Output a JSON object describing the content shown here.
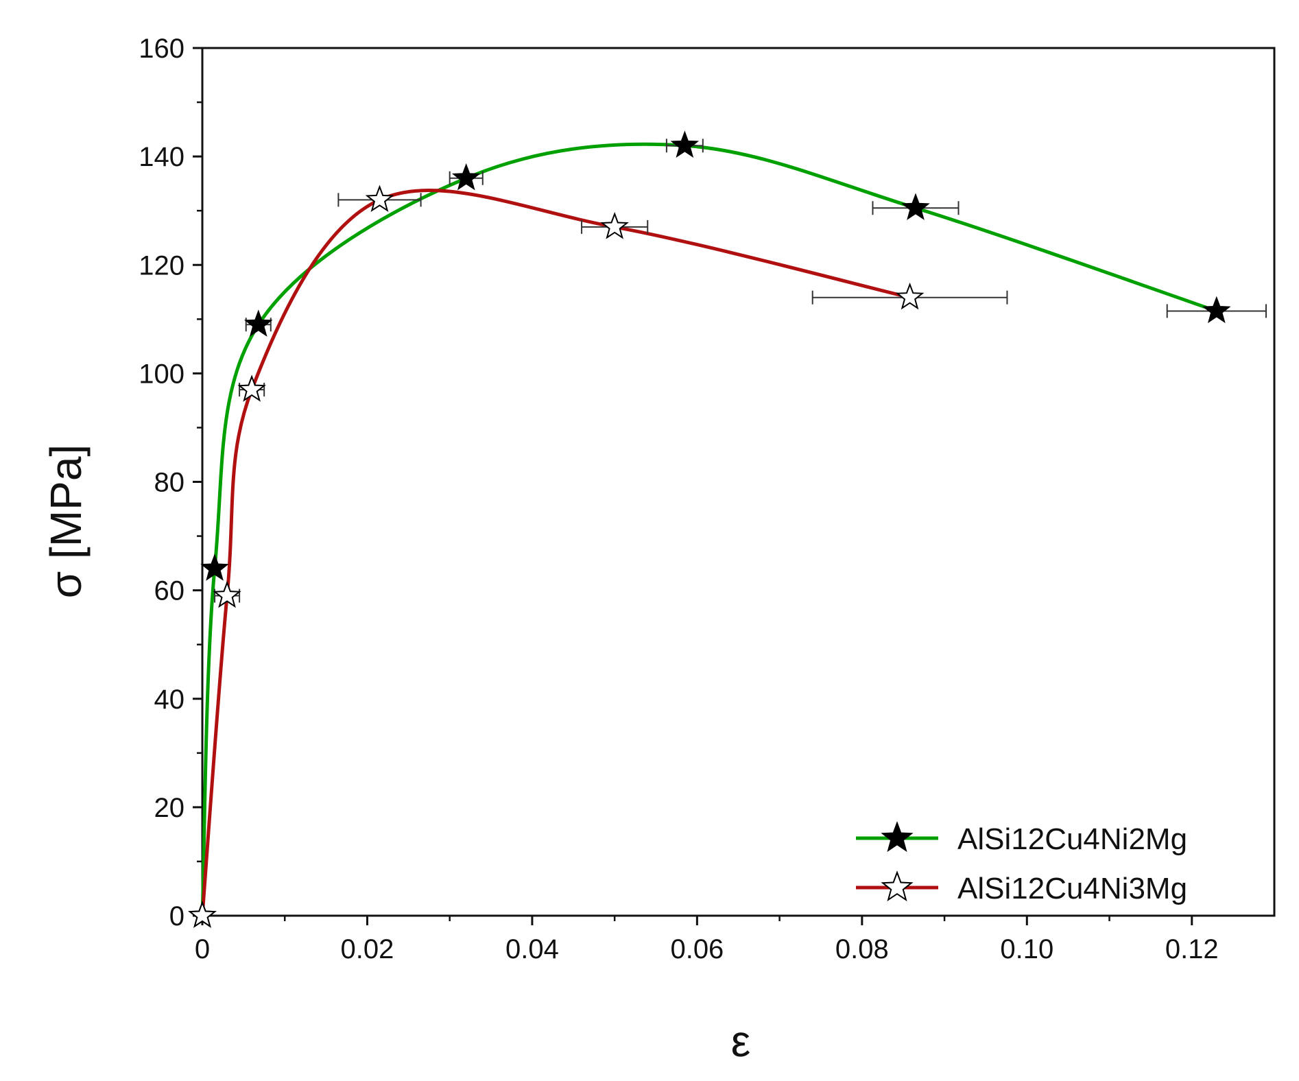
{
  "chart_data": {
    "type": "line",
    "xlabel": "ε",
    "ylabel": "σ [MPa]",
    "xlim": [
      0,
      0.13
    ],
    "ylim": [
      0,
      160
    ],
    "x_ticks": [
      "0",
      "0.02",
      "0.04",
      "0.06",
      "0.08",
      "0.10",
      "0.12"
    ],
    "y_ticks": [
      "0",
      "20",
      "40",
      "60",
      "80",
      "100",
      "120",
      "140",
      "160"
    ],
    "grid": false,
    "legend_position": "bottom-right",
    "series": [
      {
        "name": "AlSi12Cu4Ni2Mg",
        "color": "#00A000",
        "marker": "filled-star",
        "points": [
          {
            "x": 0.0,
            "y": 0,
            "xerr": 0
          },
          {
            "x": 0.0015,
            "y": 64,
            "xerr": 0
          },
          {
            "x": 0.0068,
            "y": 109,
            "xerr": 0.0015
          },
          {
            "x": 0.032,
            "y": 136,
            "xerr": 0.002
          },
          {
            "x": 0.0585,
            "y": 142,
            "xerr": 0.0022
          },
          {
            "x": 0.0865,
            "y": 130.5,
            "xerr": 0.0052
          },
          {
            "x": 0.123,
            "y": 111.5,
            "xerr": 0.006
          }
        ]
      },
      {
        "name": "AlSi12Cu4Ni3Mg",
        "color": "#B01010",
        "marker": "open-star",
        "points": [
          {
            "x": 0.0,
            "y": 0,
            "xerr": 0
          },
          {
            "x": 0.003,
            "y": 59,
            "xerr": 0.0015
          },
          {
            "x": 0.006,
            "y": 97,
            "xerr": 0.0015
          },
          {
            "x": 0.0215,
            "y": 132,
            "xerr": 0.005
          },
          {
            "x": 0.05,
            "y": 127,
            "xerr": 0.004
          },
          {
            "x": 0.0858,
            "y": 114,
            "xerr": 0.0118
          }
        ]
      }
    ]
  }
}
